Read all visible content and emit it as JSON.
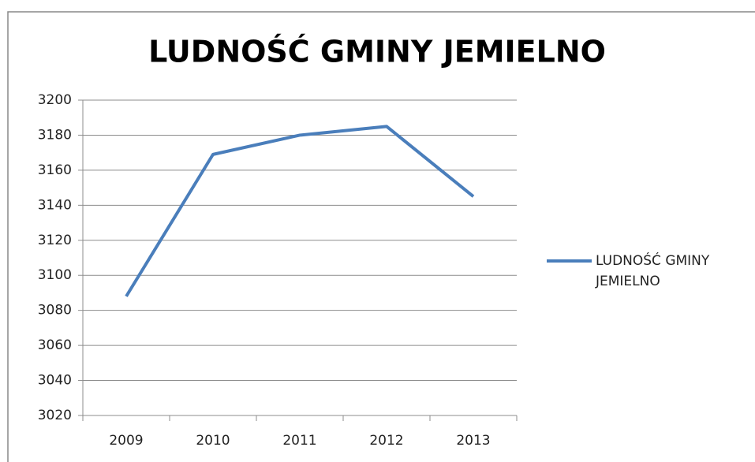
{
  "chart_data": {
    "type": "line",
    "title": "LUDNOŚĆ GMINY JEMIELNO",
    "categories": [
      "2009",
      "2010",
      "2011",
      "2012",
      "2013"
    ],
    "series": [
      {
        "name": "LUDNOŚĆ GMINY JEMIELNO",
        "color": "#4a7ebb",
        "values": [
          3088,
          3169,
          3180,
          3185,
          3145
        ]
      }
    ],
    "ylim": [
      3020,
      3200
    ],
    "yticks": [
      3020,
      3040,
      3060,
      3080,
      3100,
      3120,
      3140,
      3160,
      3180,
      3200
    ],
    "grid": true,
    "legend": "right"
  }
}
